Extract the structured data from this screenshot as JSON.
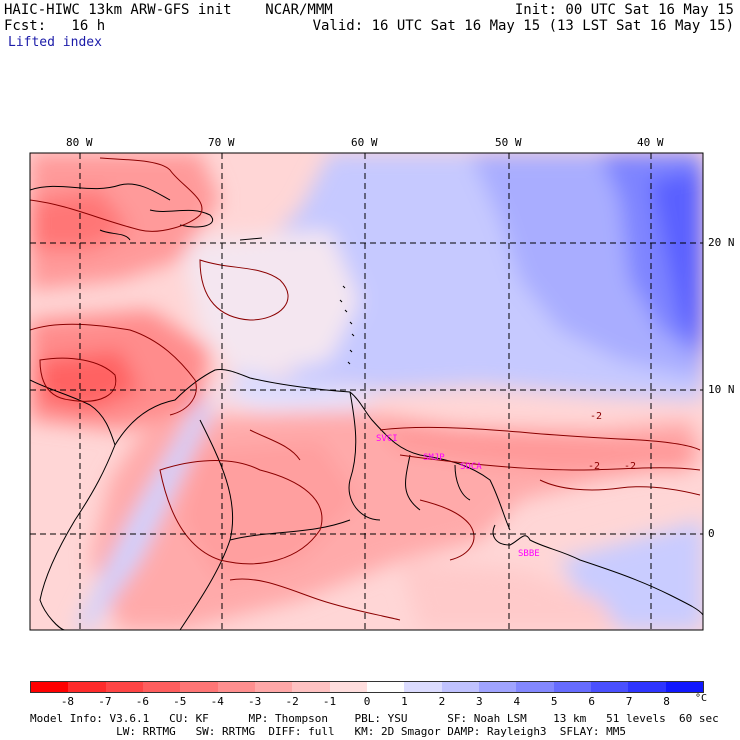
{
  "header": {
    "title": "HAIC-HIWC 13km ARW-GFS init    NCAR/MMM",
    "forecast": "Fcst:   16 h",
    "init": "Init: 00 UTC Sat 16 May 15",
    "valid": "Valid: 16 UTC Sat 16 May 15 (13 LST Sat 16 May 15)",
    "field": "Lifted index"
  },
  "map": {
    "lon_labels": [
      "80 W",
      "70 W",
      "60 W",
      "50 W",
      "40 W"
    ],
    "lat_labels": [
      "20 N",
      "10 N",
      "0"
    ],
    "stations": [
      "SVCI",
      "SMJP",
      "SOCA",
      "SBBE"
    ],
    "contour_labels": [
      "-2",
      "-2",
      "-2"
    ],
    "colors": {
      "negative_strong": "#ff1a1a",
      "negative_weak": "#ffd0d0",
      "neutral": "#ffffff",
      "positive_weak": "#d0d4ff",
      "positive_strong": "#1a1aff",
      "station": "#ff00ff",
      "contour": "#8b0000",
      "coast": "#000000",
      "grid": "#000000"
    }
  },
  "colorbar": {
    "ticks": [
      "-8",
      "-7",
      "-6",
      "-5",
      "-4",
      "-3",
      "-2",
      "-1",
      "0",
      "1",
      "2",
      "3",
      "4",
      "5",
      "6",
      "7",
      "8"
    ],
    "unit": "°C",
    "colors": [
      "#ff0000",
      "#ff2b2b",
      "#ff4545",
      "#ff5e5e",
      "#ff7676",
      "#ff8f8f",
      "#ffa8a8",
      "#ffc2c2",
      "#ffdede",
      "#fefefe",
      "#dcdcff",
      "#c0c2ff",
      "#a0a4ff",
      "#8388ff",
      "#666cff",
      "#4a50ff",
      "#2e35ff",
      "#1018ff"
    ]
  },
  "model_info": {
    "line1": "Model Info: V3.6.1   CU: KF      MP: Thompson    PBL: YSU      SF: Noah LSM    13 km   51 levels  60 sec",
    "line2": "             LW: RRTMG   SW: RRTMG  DIFF: full   KM: 2D Smagor DAMP: Rayleigh3  SFLAY: MM5"
  }
}
